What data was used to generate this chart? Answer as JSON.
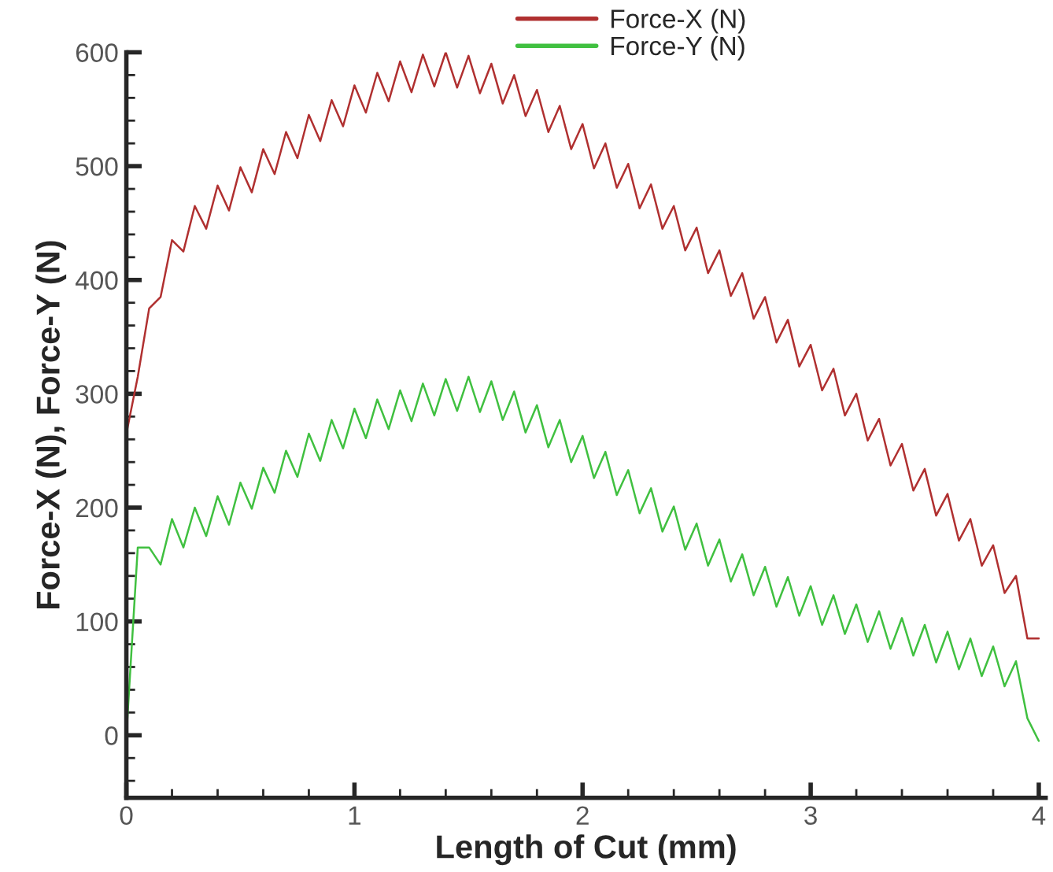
{
  "chart_data": {
    "type": "line",
    "xlabel": "Length of Cut (mm)",
    "ylabel": "Force-X (N), Force-Y (N)",
    "x": [
      0,
      0.05,
      0.1,
      0.15,
      0.2,
      0.25,
      0.3,
      0.35,
      0.4,
      0.45,
      0.5,
      0.55,
      0.6,
      0.65,
      0.7,
      0.75,
      0.8,
      0.85,
      0.9,
      0.95,
      1.0,
      1.05,
      1.1,
      1.15,
      1.2,
      1.25,
      1.3,
      1.35,
      1.4,
      1.45,
      1.5,
      1.55,
      1.6,
      1.65,
      1.7,
      1.75,
      1.8,
      1.85,
      1.9,
      1.95,
      2.0,
      2.05,
      2.1,
      2.15,
      2.2,
      2.25,
      2.3,
      2.35,
      2.4,
      2.45,
      2.5,
      2.55,
      2.6,
      2.65,
      2.7,
      2.75,
      2.8,
      2.85,
      2.9,
      2.95,
      3.0,
      3.05,
      3.1,
      3.15,
      3.2,
      3.25,
      3.3,
      3.35,
      3.4,
      3.45,
      3.5,
      3.55,
      3.6,
      3.65,
      3.7,
      3.75,
      3.8,
      3.85,
      3.9,
      3.95,
      4.0
    ],
    "series": [
      {
        "name": "Force-X (N)",
        "color": "#b03030",
        "values": [
          265,
          315,
          375,
          385,
          435,
          425,
          465,
          445,
          483,
          461,
          499,
          477,
          515,
          493,
          530,
          507,
          545,
          522,
          558,
          535,
          571,
          547,
          582,
          557,
          592,
          565,
          598,
          570,
          600,
          569,
          597,
          564,
          590,
          555,
          580,
          544,
          567,
          530,
          553,
          515,
          537,
          498,
          520,
          481,
          502,
          463,
          484,
          445,
          465,
          426,
          446,
          406,
          426,
          386,
          406,
          366,
          385,
          345,
          365,
          324,
          343,
          303,
          322,
          281,
          300,
          259,
          278,
          237,
          256,
          215,
          234,
          193,
          212,
          171,
          190,
          149,
          167,
          125,
          140,
          85,
          85
        ]
      },
      {
        "name": "Force-Y (N)",
        "color": "#40c040",
        "values": [
          0,
          165,
          165,
          150,
          190,
          165,
          200,
          175,
          210,
          185,
          222,
          199,
          235,
          213,
          250,
          227,
          265,
          241,
          277,
          252,
          287,
          261,
          295,
          269,
          303,
          276,
          309,
          281,
          313,
          285,
          315,
          284,
          311,
          277,
          302,
          266,
          290,
          253,
          277,
          240,
          263,
          226,
          249,
          211,
          233,
          195,
          217,
          179,
          201,
          163,
          186,
          149,
          172,
          135,
          159,
          123,
          148,
          113,
          139,
          105,
          131,
          97,
          123,
          89,
          115,
          82,
          109,
          76,
          103,
          70,
          97,
          64,
          91,
          58,
          85,
          52,
          78,
          43,
          65,
          15,
          -5
        ]
      }
    ],
    "xlim": [
      0,
      4.03
    ],
    "ylim": [
      -55,
      600
    ],
    "xticks": [
      0,
      1,
      2,
      3,
      4
    ],
    "yticks": [
      0,
      100,
      200,
      300,
      400,
      500,
      600
    ],
    "grid": false,
    "legend": "top",
    "marker": "none",
    "line_style": "solid"
  }
}
